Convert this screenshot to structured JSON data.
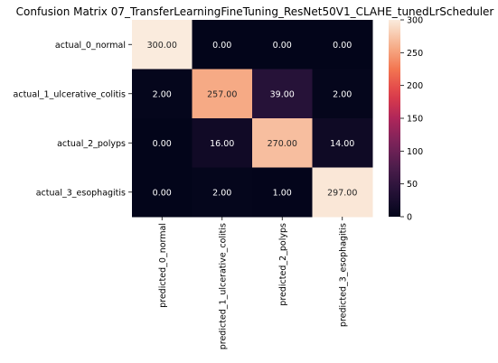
{
  "chart_data": {
    "type": "heatmap",
    "title": "Confusion Matrix 07_TransferLearningFineTuning_ResNet50V1_CLAHE_tunedLrScheduler",
    "row_labels": [
      "actual_0_normal",
      "actual_1_ulcerative_colitis",
      "actual_2_polyps",
      "actual_3_esophagitis"
    ],
    "col_labels": [
      "predicted_0_normal",
      "predicted_1_ulcerative_colitis",
      "predicted_2_polyps",
      "predicted_3_esophagitis"
    ],
    "values": [
      [
        300,
        0,
        0,
        0
      ],
      [
        2,
        257,
        39,
        2
      ],
      [
        0,
        16,
        270,
        14
      ],
      [
        0,
        2,
        1,
        297
      ]
    ],
    "value_format": "2 decimals",
    "colormap": "rocket",
    "vmin": 0,
    "vmax": 300,
    "colorbar_ticks": [
      0,
      50,
      100,
      150,
      200,
      250,
      300
    ],
    "grid": false
  }
}
